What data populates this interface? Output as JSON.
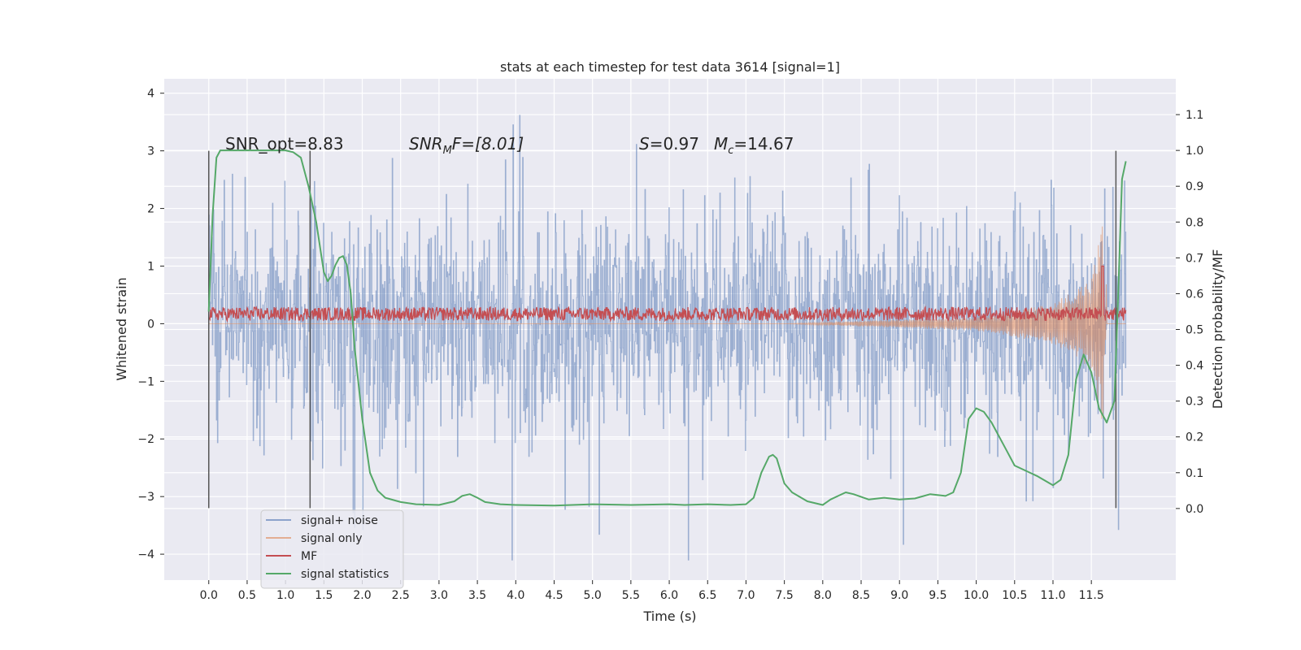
{
  "chart_data": {
    "type": "line",
    "title": "stats at each timestep for test data 3614 [signal=1]",
    "xlabel": "Time (s)",
    "ylabel": "Whitened strain",
    "y2label": "Detection probability/MF",
    "xlim": [
      -0.58,
      12.6
    ],
    "ylim": [
      -4.45,
      4.25
    ],
    "y2lim": [
      -0.2,
      1.2
    ],
    "x_ticks": [
      "0.0",
      "0.5",
      "1.0",
      "1.5",
      "2.0",
      "2.5",
      "3.0",
      "3.5",
      "4.0",
      "4.5",
      "5.0",
      "5.5",
      "6.0",
      "6.5",
      "7.0",
      "7.5",
      "8.0",
      "8.5",
      "9.0",
      "9.5",
      "10.0",
      "10.5",
      "11.0",
      "11.5"
    ],
    "y_ticks": [
      "4",
      "3",
      "2",
      "1",
      "0",
      "−1",
      "−2",
      "−3",
      "−4"
    ],
    "y2_ticks": [
      "1.1",
      "1.0",
      "0.9",
      "0.8",
      "0.7",
      "0.6",
      "0.5",
      "0.4",
      "0.3",
      "0.2",
      "0.1",
      "0.0"
    ],
    "grid": true,
    "legend_position": "lower-left",
    "annotations": {
      "snr_opt": "SNR_opt=8.83",
      "snr_mf_prefix": "SNR",
      "snr_mf_sub": "M",
      "snr_mf_suffix": "F=[8.01]",
      "s_label": "S",
      "s_value": "=0.97",
      "mc_label": "M",
      "mc_sub": "c",
      "mc_value": "=14.67"
    },
    "vlines_x": [
      0.0,
      1.32,
      11.82
    ],
    "series": [
      {
        "name": "signal+ noise",
        "color": "#4c72b0",
        "axis": "left",
        "x_range": [
          0.0,
          11.95
        ],
        "envelope_typical": [
          -1.6,
          1.8
        ],
        "envelope_extreme": [
          -4.1,
          3.85
        ]
      },
      {
        "name": "signal only",
        "color": "#dd8452",
        "axis": "left",
        "x_range": [
          0.0,
          11.95
        ],
        "description_points": [
          [
            0.0,
            0.0
          ],
          [
            7.5,
            0.0
          ],
          [
            10.0,
            0.12
          ],
          [
            11.0,
            0.35
          ],
          [
            11.5,
            0.8
          ],
          [
            11.65,
            1.8
          ],
          [
            11.7,
            -1.3
          ]
        ]
      },
      {
        "name": "MF",
        "color": "#c44e52",
        "axis": "left",
        "x_range": [
          0.0,
          11.95
        ],
        "center": 0.17,
        "amplitude": 0.12,
        "peak": [
          11.65,
          1.0
        ]
      },
      {
        "name": "signal statistics",
        "color": "#55a868",
        "axis": "right",
        "x": [
          0.0,
          0.05,
          0.1,
          0.15,
          0.2,
          0.3,
          0.5,
          0.7,
          0.9,
          1.0,
          1.1,
          1.2,
          1.3,
          1.4,
          1.5,
          1.55,
          1.6,
          1.65,
          1.7,
          1.75,
          1.8,
          1.85,
          1.9,
          2.0,
          2.1,
          2.2,
          2.3,
          2.5,
          2.7,
          3.0,
          3.2,
          3.3,
          3.4,
          3.5,
          3.6,
          3.8,
          4.0,
          4.5,
          5.0,
          5.5,
          6.0,
          6.2,
          6.5,
          6.8,
          7.0,
          7.1,
          7.2,
          7.3,
          7.35,
          7.4,
          7.5,
          7.6,
          7.8,
          8.0,
          8.1,
          8.2,
          8.3,
          8.4,
          8.6,
          8.8,
          9.0,
          9.2,
          9.4,
          9.6,
          9.7,
          9.8,
          9.9,
          10.0,
          10.1,
          10.2,
          10.4,
          10.5,
          10.6,
          10.8,
          11.0,
          11.1,
          11.2,
          11.3,
          11.4,
          11.5,
          11.6,
          11.7,
          11.8,
          11.85,
          11.9,
          11.95
        ],
        "y": [
          0.55,
          0.82,
          0.98,
          1.0,
          1.0,
          1.0,
          1.0,
          1.0,
          1.0,
          1.0,
          0.995,
          0.98,
          0.9,
          0.8,
          0.66,
          0.635,
          0.65,
          0.68,
          0.7,
          0.705,
          0.68,
          0.6,
          0.45,
          0.25,
          0.1,
          0.05,
          0.03,
          0.018,
          0.012,
          0.01,
          0.02,
          0.035,
          0.04,
          0.03,
          0.018,
          0.012,
          0.01,
          0.008,
          0.012,
          0.01,
          0.012,
          0.01,
          0.012,
          0.01,
          0.012,
          0.03,
          0.1,
          0.145,
          0.15,
          0.14,
          0.07,
          0.045,
          0.02,
          0.01,
          0.025,
          0.035,
          0.045,
          0.04,
          0.025,
          0.03,
          0.025,
          0.028,
          0.04,
          0.035,
          0.045,
          0.1,
          0.25,
          0.28,
          0.27,
          0.24,
          0.16,
          0.12,
          0.11,
          0.09,
          0.065,
          0.08,
          0.15,
          0.36,
          0.43,
          0.38,
          0.28,
          0.24,
          0.3,
          0.6,
          0.92,
          0.97
        ]
      }
    ]
  }
}
